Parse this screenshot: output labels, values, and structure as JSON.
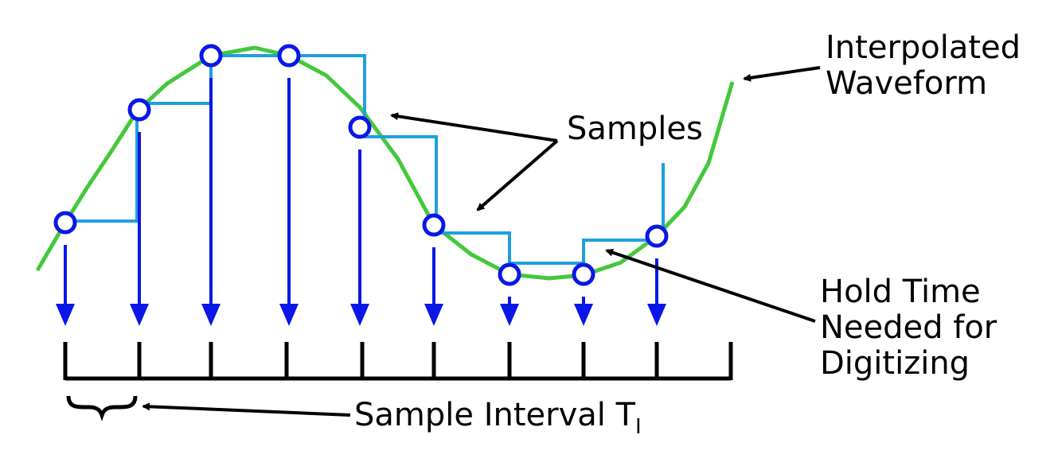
{
  "colors": {
    "waveform": "#44c83c",
    "hold_steps": "#1f9fe0",
    "samples": "#0a17e6",
    "annotation": "#000000",
    "background": "#ffffff"
  },
  "labels": {
    "interpolated_line1": "Interpolated",
    "interpolated_line2": "Waveform",
    "samples": "Samples",
    "hold_line1": "Hold Time",
    "hold_line2": "Needed for",
    "hold_line3": "Digitizing",
    "interval_main": "Sample Interval T",
    "interval_sub": "I"
  },
  "sample_count": 9,
  "tick_count": 10
}
